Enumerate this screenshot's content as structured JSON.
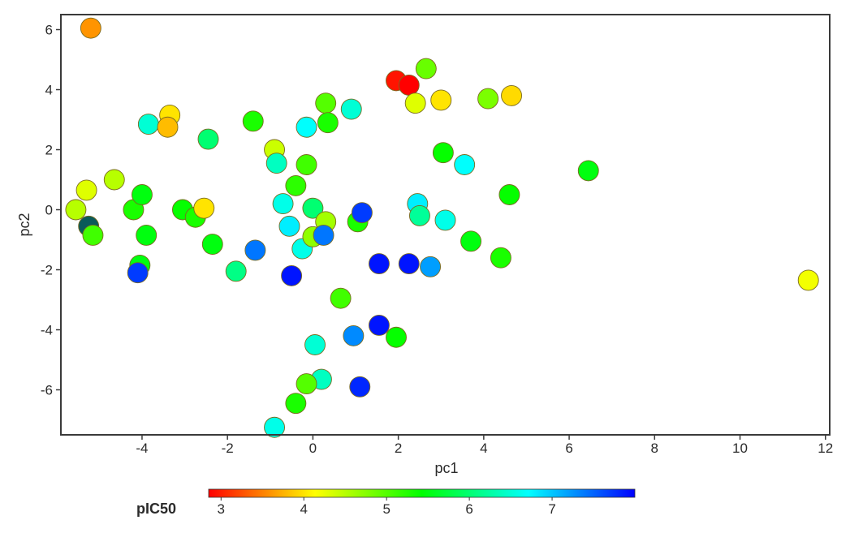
{
  "chart_data": {
    "type": "scatter",
    "title": "",
    "xlabel": "pc1",
    "ylabel": "pc2",
    "xlim": [
      -5.9,
      12.1
    ],
    "ylim": [
      -7.5,
      6.5
    ],
    "x_ticks": [
      -4,
      -2,
      0,
      2,
      4,
      6,
      8,
      10,
      12
    ],
    "y_ticks": [
      -6,
      -4,
      -2,
      0,
      2,
      4,
      6
    ],
    "grid": false,
    "colorbar": {
      "title": "pIC50",
      "min": 2.85,
      "max": 8.0,
      "ticks": [
        3,
        4,
        5,
        6,
        7
      ],
      "colormap": "rainbow-jet",
      "placement": "bottom"
    },
    "points": [
      {
        "x": -5.2,
        "y": 6.05,
        "c": 3.6
      },
      {
        "x": -5.55,
        "y": 0.0,
        "c": 4.5
      },
      {
        "x": -5.3,
        "y": 0.65,
        "c": 4.3
      },
      {
        "x": -5.25,
        "y": -0.55,
        "c": 8.0
      },
      {
        "x": -5.15,
        "y": -0.85,
        "c": 5.1
      },
      {
        "x": -4.65,
        "y": 1.0,
        "c": 4.5
      },
      {
        "x": -4.2,
        "y": 0.0,
        "c": 5.3
      },
      {
        "x": -4.0,
        "y": 0.5,
        "c": 5.5
      },
      {
        "x": -3.9,
        "y": -0.85,
        "c": 5.5
      },
      {
        "x": -4.05,
        "y": -1.85,
        "c": 5.5
      },
      {
        "x": -4.1,
        "y": -2.1,
        "c": 7.7
      },
      {
        "x": -3.85,
        "y": 2.85,
        "c": 6.5
      },
      {
        "x": -3.35,
        "y": 3.15,
        "c": 4.0
      },
      {
        "x": -3.4,
        "y": 2.75,
        "c": 3.8
      },
      {
        "x": -3.05,
        "y": 0.0,
        "c": 5.4
      },
      {
        "x": -2.75,
        "y": -0.25,
        "c": 5.3
      },
      {
        "x": -2.55,
        "y": 0.05,
        "c": 4.0
      },
      {
        "x": -2.45,
        "y": 2.35,
        "c": 6.0
      },
      {
        "x": -2.35,
        "y": -1.15,
        "c": 5.5
      },
      {
        "x": -1.8,
        "y": -2.05,
        "c": 6.1
      },
      {
        "x": -1.4,
        "y": 2.95,
        "c": 5.3
      },
      {
        "x": -1.35,
        "y": -1.35,
        "c": 7.4
      },
      {
        "x": -0.9,
        "y": 2.0,
        "c": 4.4
      },
      {
        "x": -0.85,
        "y": 1.55,
        "c": 6.4
      },
      {
        "x": -0.7,
        "y": 0.2,
        "c": 6.6
      },
      {
        "x": -0.55,
        "y": -0.55,
        "c": 6.8
      },
      {
        "x": -0.5,
        "y": -2.2,
        "c": 7.9
      },
      {
        "x": -0.4,
        "y": 0.8,
        "c": 5.2
      },
      {
        "x": -0.25,
        "y": -1.3,
        "c": 6.6
      },
      {
        "x": -0.15,
        "y": 1.5,
        "c": 5.1
      },
      {
        "x": -0.15,
        "y": 2.75,
        "c": 6.7
      },
      {
        "x": 0.0,
        "y": 0.05,
        "c": 6.0
      },
      {
        "x": 0.0,
        "y": -0.9,
        "c": 4.7
      },
      {
        "x": 0.3,
        "y": -0.4,
        "c": 4.6
      },
      {
        "x": 0.3,
        "y": 3.55,
        "c": 5.0
      },
      {
        "x": 0.35,
        "y": 2.9,
        "c": 5.3
      },
      {
        "x": 0.25,
        "y": -0.85,
        "c": 7.4
      },
      {
        "x": 0.9,
        "y": 3.35,
        "c": 6.5
      },
      {
        "x": 1.05,
        "y": -0.4,
        "c": 5.3
      },
      {
        "x": 1.15,
        "y": -0.1,
        "c": 7.7
      },
      {
        "x": 0.65,
        "y": -2.95,
        "c": 5.1
      },
      {
        "x": 1.55,
        "y": -1.8,
        "c": 7.9
      },
      {
        "x": 2.25,
        "y": -1.8,
        "c": 7.9
      },
      {
        "x": 2.75,
        "y": -1.9,
        "c": 7.2
      },
      {
        "x": 1.95,
        "y": 4.3,
        "c": 2.95
      },
      {
        "x": 2.25,
        "y": 4.15,
        "c": 2.85
      },
      {
        "x": 2.65,
        "y": 4.7,
        "c": 4.9
      },
      {
        "x": 2.4,
        "y": 3.55,
        "c": 4.3
      },
      {
        "x": 3.0,
        "y": 3.65,
        "c": 4.0
      },
      {
        "x": 3.05,
        "y": 1.9,
        "c": 5.4
      },
      {
        "x": 2.45,
        "y": 0.2,
        "c": 6.8
      },
      {
        "x": 2.5,
        "y": -0.2,
        "c": 6.2
      },
      {
        "x": 3.1,
        "y": -0.35,
        "c": 6.6
      },
      {
        "x": 3.55,
        "y": 1.5,
        "c": 6.7
      },
      {
        "x": 3.7,
        "y": -1.05,
        "c": 5.5
      },
      {
        "x": 4.1,
        "y": 3.7,
        "c": 4.8
      },
      {
        "x": 4.65,
        "y": 3.8,
        "c": 3.95
      },
      {
        "x": 4.4,
        "y": -1.6,
        "c": 5.3
      },
      {
        "x": 4.6,
        "y": 0.5,
        "c": 5.4
      },
      {
        "x": 6.45,
        "y": 1.3,
        "c": 5.5
      },
      {
        "x": 11.6,
        "y": -2.35,
        "c": 4.2
      },
      {
        "x": 0.95,
        "y": -4.2,
        "c": 7.3
      },
      {
        "x": 1.55,
        "y": -3.85,
        "c": 7.9
      },
      {
        "x": 1.95,
        "y": -4.25,
        "c": 5.4
      },
      {
        "x": 0.05,
        "y": -4.5,
        "c": 6.5
      },
      {
        "x": 0.2,
        "y": -5.65,
        "c": 6.4
      },
      {
        "x": -0.15,
        "y": -5.8,
        "c": 5.0
      },
      {
        "x": 1.1,
        "y": -5.9,
        "c": 7.8
      },
      {
        "x": -0.4,
        "y": -6.45,
        "c": 5.3
      },
      {
        "x": -0.9,
        "y": -7.25,
        "c": 6.6
      }
    ]
  }
}
